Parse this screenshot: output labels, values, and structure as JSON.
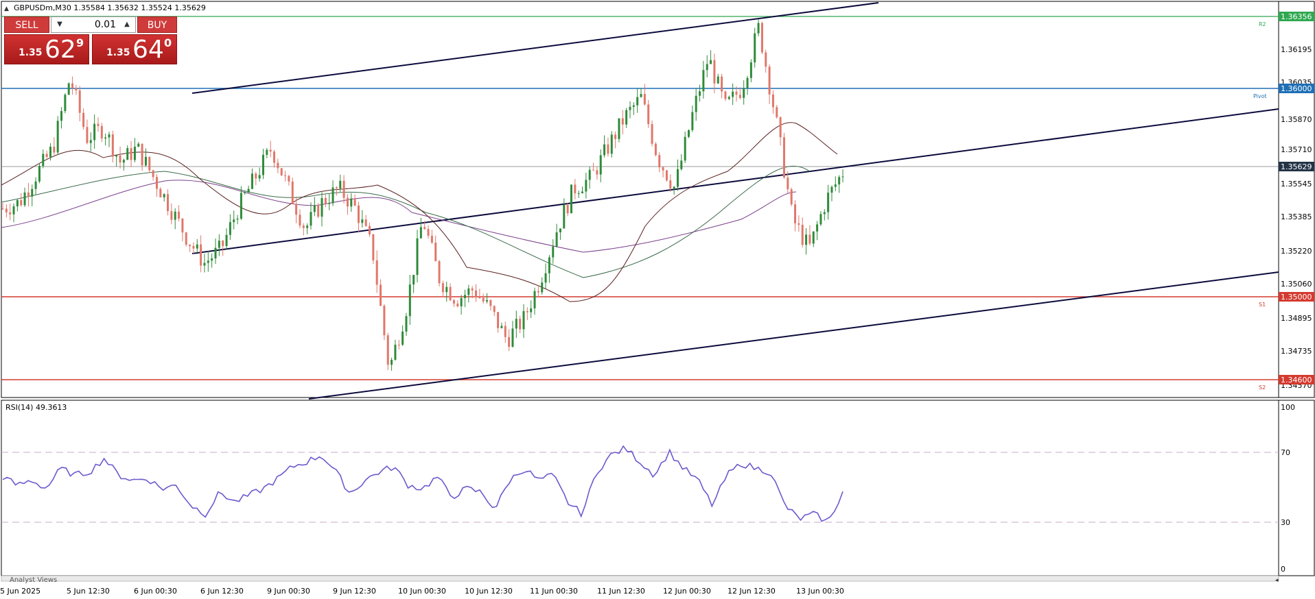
{
  "header": {
    "symbol_info": "GBPUSDm,M30  1.35584 1.35632 1.35524 1.35629"
  },
  "trade_panel": {
    "sell_label": "SELL",
    "buy_label": "BUY",
    "lot_value": "0.01",
    "sell_price_prefix": "1.35",
    "sell_price_big": "62",
    "sell_price_sup": "9",
    "buy_price_prefix": "1.35",
    "buy_price_big": "64",
    "buy_price_sup": "0"
  },
  "price_scale": [
    "1.36195",
    "1.36035",
    "1.35870",
    "1.35710",
    "1.35545",
    "1.35385",
    "1.35220",
    "1.35060",
    "1.34895",
    "1.34735",
    "1.34570"
  ],
  "price_tags": {
    "r2": "1.36356",
    "pivot": "1.36000",
    "current": "1.35629",
    "s1": "1.35000",
    "s2": "1.34600"
  },
  "level_labels": {
    "r2": "R2",
    "pivot": "Pivot",
    "s1": "S1",
    "s2": "S2"
  },
  "rsi": {
    "label": "RSI(14) 49.3613",
    "scale": [
      "100",
      "70",
      "30",
      "0"
    ]
  },
  "time_axis": [
    "5 Jun 2025",
    "5 Jun 12:30",
    "6 Jun 00:30",
    "6 Jun 12:30",
    "9 Jun 00:30",
    "9 Jun 12:30",
    "10 Jun 00:30",
    "10 Jun 12:30",
    "11 Jun 00:30",
    "11 Jun 12:30",
    "12 Jun 00:30",
    "12 Jun 12:30",
    "13 Jun 00:30"
  ],
  "bottom_tab": "Analyst Views",
  "colors": {
    "bull": "#2e8b3a",
    "bear": "#e0776a",
    "r2_line": "#2fa84f",
    "pivot_line": "#1e6fb5",
    "support_line": "#d43a2f",
    "current_tag": "#243447",
    "rsi_line": "#6a5acd",
    "ma_fast": "#5a1f1f",
    "ma_mid": "#3a6b4a",
    "ma_slow": "#7a3f8a"
  },
  "chart_data": [
    {
      "type": "candlestick",
      "title": "GBPUSDm,M30",
      "ylim": [
        1.3452,
        1.3647
      ],
      "x": [
        "5 Jun 2025",
        "5 Jun 12:30",
        "6 Jun 00:30",
        "6 Jun 12:30",
        "9 Jun 00:30",
        "9 Jun 12:30",
        "10 Jun 00:30",
        "10 Jun 12:30",
        "11 Jun 00:30",
        "11 Jun 12:30",
        "12 Jun 00:30",
        "12 Jun 12:30",
        "13 Jun 00:30"
      ],
      "close_path": [
        1.3545,
        1.3548,
        1.3562,
        1.3575,
        1.361,
        1.358,
        1.3585,
        1.3568,
        1.3575,
        1.356,
        1.3545,
        1.353,
        1.3518,
        1.3525,
        1.3545,
        1.356,
        1.3575,
        1.3555,
        1.3535,
        1.3548,
        1.3555,
        1.3545,
        1.3525,
        1.3465,
        1.3495,
        1.354,
        1.351,
        1.35,
        1.3505,
        1.3495,
        1.348,
        1.349,
        1.351,
        1.3535,
        1.3555,
        1.356,
        1.3575,
        1.359,
        1.36,
        1.357,
        1.3555,
        1.359,
        1.362,
        1.3595,
        1.3605,
        1.3635,
        1.359,
        1.354,
        1.3525,
        1.3549,
        1.3563
      ],
      "series": [
        {
          "name": "RSI(14)",
          "last": 49.3613
        }
      ],
      "levels": {
        "R2": 1.36356,
        "Pivot": 1.36,
        "S1": 1.35,
        "S2": 1.346,
        "current": 1.35629
      },
      "rsi_ylim": [
        0,
        100
      ],
      "rsi_levels": [
        70,
        30
      ],
      "rsi_path": [
        57,
        52,
        55,
        50,
        62,
        58,
        60,
        68,
        58,
        55,
        56,
        50,
        52,
        40,
        35,
        48,
        42,
        46,
        50,
        56,
        63,
        66,
        70,
        60,
        47,
        55,
        60,
        63,
        52,
        50,
        57,
        45,
        50,
        48,
        38,
        55,
        62,
        55,
        58,
        42,
        35,
        60,
        70,
        74,
        66,
        58,
        72,
        62,
        55,
        40,
        58,
        65,
        62,
        60,
        40,
        32,
        35,
        30,
        48
      ]
    }
  ]
}
